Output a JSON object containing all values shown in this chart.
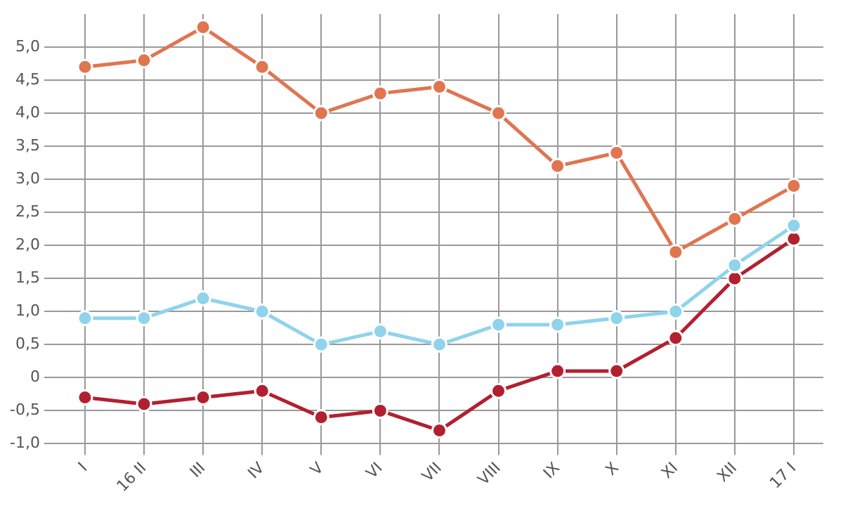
{
  "chart_data": {
    "type": "line",
    "categories": [
      "I",
      "16 II",
      "III",
      "IV",
      "V",
      "VI",
      "VII",
      "VIII",
      "IX",
      "X",
      "XI",
      "XII",
      "17 I"
    ],
    "series": [
      {
        "color": "#e07550",
        "values": [
          4.7,
          4.8,
          5.3,
          4.7,
          4.0,
          4.3,
          4.4,
          4.0,
          3.2,
          3.4,
          1.9,
          2.4,
          2.9
        ]
      },
      {
        "color": "#8fd3ec",
        "values": [
          0.9,
          0.9,
          1.2,
          1.0,
          0.5,
          0.7,
          0.5,
          0.8,
          0.8,
          0.9,
          1.0,
          1.7,
          2.3
        ]
      },
      {
        "color": "#b22030",
        "values": [
          -0.3,
          -0.4,
          -0.3,
          -0.2,
          -0.6,
          -0.5,
          -0.8,
          -0.2,
          0.1,
          0.1,
          0.6,
          1.5,
          2.1
        ]
      }
    ],
    "ylim": [
      -1.0,
      5.5
    ],
    "yticks": [
      {
        "value": -1,
        "label": "-1,0"
      },
      {
        "value": -0.5,
        "label": "-0,5"
      },
      0,
      {
        "value": 0.5,
        "label": "0,5"
      },
      {
        "value": 1,
        "label": "1,0"
      },
      {
        "value": 1.5,
        "label": "1,5"
      },
      {
        "value": 2,
        "label": "2,0"
      },
      {
        "value": 2.5,
        "label": "2,5"
      },
      {
        "value": 3,
        "label": "3,0"
      },
      {
        "value": 3.5,
        "label": "3,5"
      },
      {
        "value": 4,
        "label": "4,0"
      },
      {
        "value": 4.5,
        "label": "4,5"
      },
      {
        "value": 5,
        "label": "5,0"
      }
    ],
    "grid": true,
    "marker": "circle",
    "line_style": "solid"
  }
}
